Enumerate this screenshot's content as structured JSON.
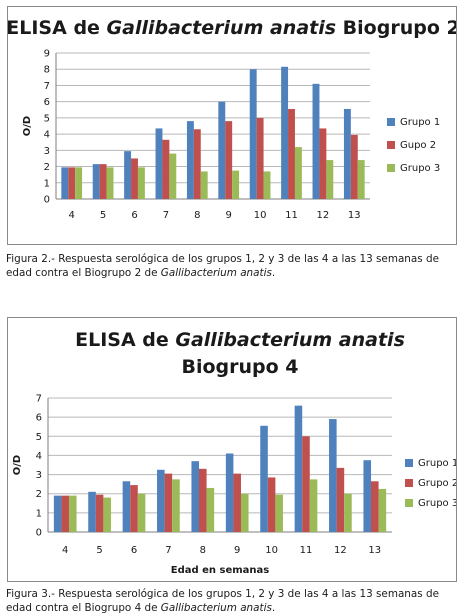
{
  "colors": {
    "grupo1": "#4f81bd",
    "grupo2": "#c0504d",
    "grupo3": "#9bbb59"
  },
  "captions": [
    {
      "text_a": "Figura 2.- Respuesta serológica de los grupos 1, 2 y 3 de las 4 a las 13 semanas de edad contra el Biogrupo 2 de ",
      "italic": "Gallibacterium anatis",
      "text_b": "."
    },
    {
      "text_a": "Figura 3.- Respuesta serológica de los grupos 1, 2 y 3 de las 4 a las 13 semanas de edad contra el Biogrupo 4 de ",
      "italic": "Gallibacterium anatis",
      "text_b": "."
    }
  ],
  "chart_data": [
    {
      "type": "bar",
      "title_parts": [
        "ELISA de ",
        "Gallibacterium anatis",
        " Biogrupo 2"
      ],
      "xlabel": "",
      "ylabel": "O/D",
      "ylim": [
        0,
        9
      ],
      "yticks": [
        0,
        1,
        2,
        3,
        4,
        5,
        6,
        7,
        8,
        9
      ],
      "grid": true,
      "legend": "right",
      "categories": [
        "4",
        "5",
        "6",
        "7",
        "8",
        "9",
        "10",
        "11",
        "12",
        "13"
      ],
      "series": [
        {
          "name": "Grupo 1",
          "values": [
            1.95,
            2.15,
            2.95,
            4.35,
            4.8,
            6.0,
            8.0,
            8.15,
            7.1,
            5.55
          ]
        },
        {
          "name": "Gupo 2",
          "values": [
            1.95,
            2.15,
            2.5,
            3.65,
            4.3,
            4.8,
            5.0,
            5.55,
            4.35,
            3.95
          ]
        },
        {
          "name": "Grupo 3",
          "values": [
            1.95,
            1.95,
            1.95,
            2.8,
            1.7,
            1.75,
            1.7,
            3.2,
            2.4,
            2.4
          ]
        }
      ]
    },
    {
      "type": "bar",
      "title_parts": [
        "ELISA de ",
        "Gallibacterium anatis",
        "Biogrupo 4"
      ],
      "xlabel": "Edad en semanas",
      "ylabel": "O/D",
      "ylim": [
        0,
        7
      ],
      "yticks": [
        0,
        1,
        2,
        3,
        4,
        5,
        6,
        7
      ],
      "grid": true,
      "legend": "right",
      "categories": [
        "4",
        "5",
        "6",
        "7",
        "8",
        "9",
        "10",
        "11",
        "12",
        "13"
      ],
      "series": [
        {
          "name": "Grupo 1",
          "values": [
            1.9,
            2.1,
            2.65,
            3.25,
            3.7,
            4.1,
            5.55,
            6.6,
            5.9,
            3.75
          ]
        },
        {
          "name": "Grupo 2",
          "values": [
            1.9,
            1.95,
            2.45,
            3.05,
            3.3,
            3.05,
            2.85,
            5.0,
            3.35,
            2.65
          ]
        },
        {
          "name": "Grupo 3",
          "values": [
            1.9,
            1.8,
            2.0,
            2.75,
            2.3,
            2.0,
            1.95,
            2.75,
            2.0,
            2.25
          ]
        }
      ]
    }
  ]
}
